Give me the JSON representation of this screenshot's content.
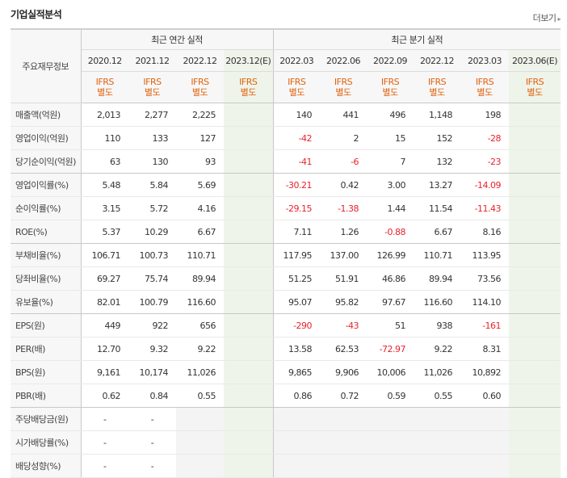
{
  "section_title": "기업실적분석",
  "more_link": "더보기",
  "header": {
    "row_label": "주요재무정보",
    "annual_group": "최근 연간 실적",
    "quarter_group": "최근 분기 실적",
    "annual_periods": [
      "2020.12",
      "2021.12",
      "2022.12",
      "2023.12(E)"
    ],
    "quarter_periods": [
      "2022.03",
      "2022.06",
      "2022.09",
      "2022.12",
      "2023.03",
      "2023.06(E)"
    ],
    "basis_line1": "IFRS",
    "basis_line2": "별도"
  },
  "rows": [
    {
      "label": "매출액(억원)",
      "annual": [
        "2,013",
        "2,277",
        "2,225",
        ""
      ],
      "quarter": [
        "140",
        "441",
        "496",
        "1,148",
        "198",
        ""
      ]
    },
    {
      "label": "영업이익(억원)",
      "annual": [
        "110",
        "133",
        "127",
        ""
      ],
      "quarter": [
        "-42",
        "2",
        "15",
        "152",
        "-28",
        ""
      ]
    },
    {
      "label": "당기순이익(억원)",
      "annual": [
        "63",
        "130",
        "93",
        ""
      ],
      "quarter": [
        "-41",
        "-6",
        "7",
        "132",
        "-23",
        ""
      ]
    },
    {
      "label": "영업이익률(%)",
      "annual": [
        "5.48",
        "5.84",
        "5.69",
        ""
      ],
      "quarter": [
        "-30.21",
        "0.42",
        "3.00",
        "13.27",
        "-14.09",
        ""
      ]
    },
    {
      "label": "순이익률(%)",
      "annual": [
        "3.15",
        "5.72",
        "4.16",
        ""
      ],
      "quarter": [
        "-29.15",
        "-1.38",
        "1.44",
        "11.54",
        "-11.43",
        ""
      ]
    },
    {
      "label": "ROE(%)",
      "annual": [
        "5.37",
        "10.29",
        "6.67",
        ""
      ],
      "quarter": [
        "7.11",
        "1.26",
        "-0.88",
        "6.67",
        "8.16",
        ""
      ]
    },
    {
      "label": "부채비율(%)",
      "annual": [
        "106.71",
        "100.73",
        "110.71",
        ""
      ],
      "quarter": [
        "117.95",
        "137.00",
        "126.99",
        "110.71",
        "113.95",
        ""
      ]
    },
    {
      "label": "당좌비율(%)",
      "annual": [
        "69.27",
        "75.74",
        "89.94",
        ""
      ],
      "quarter": [
        "51.25",
        "51.91",
        "46.86",
        "89.94",
        "73.56",
        ""
      ]
    },
    {
      "label": "유보율(%)",
      "annual": [
        "82.01",
        "100.79",
        "116.60",
        ""
      ],
      "quarter": [
        "95.07",
        "95.82",
        "97.67",
        "116.60",
        "114.10",
        ""
      ]
    },
    {
      "label": "EPS(원)",
      "annual": [
        "449",
        "922",
        "656",
        ""
      ],
      "quarter": [
        "-290",
        "-43",
        "51",
        "938",
        "-161",
        ""
      ]
    },
    {
      "label": "PER(배)",
      "annual": [
        "12.70",
        "9.32",
        "9.22",
        ""
      ],
      "quarter": [
        "13.58",
        "62.53",
        "-72.97",
        "9.22",
        "8.31",
        ""
      ]
    },
    {
      "label": "BPS(원)",
      "annual": [
        "9,161",
        "10,174",
        "11,026",
        ""
      ],
      "quarter": [
        "9,865",
        "9,906",
        "10,006",
        "11,026",
        "10,892",
        ""
      ]
    },
    {
      "label": "PBR(배)",
      "annual": [
        "0.62",
        "0.84",
        "0.55",
        ""
      ],
      "quarter": [
        "0.86",
        "0.72",
        "0.59",
        "0.55",
        "0.60",
        ""
      ]
    },
    {
      "label": "주당배당금(원)",
      "annual": [
        "-",
        "-",
        "",
        ""
      ],
      "quarter": [
        "",
        "",
        "",
        "",
        "",
        ""
      ]
    },
    {
      "label": "시가배당률(%)",
      "annual": [
        "-",
        "-",
        "",
        ""
      ],
      "quarter": [
        "",
        "",
        "",
        "",
        "",
        ""
      ]
    },
    {
      "label": "배당성향(%)",
      "annual": [
        "-",
        "-",
        "",
        ""
      ],
      "quarter": [
        "",
        "",
        "",
        "",
        "",
        ""
      ]
    }
  ],
  "colors": {
    "ifrs": "#e0620f",
    "negative": "#e8232d",
    "estimate_bg": "#eef4ea"
  }
}
